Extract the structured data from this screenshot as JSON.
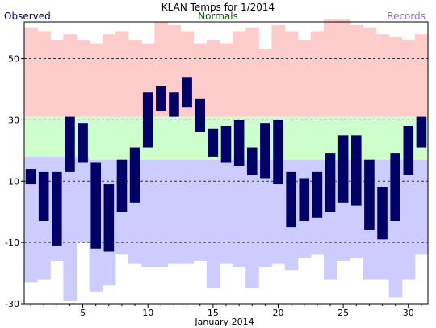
{
  "chart_data": {
    "type": "bar",
    "title": "KLAN Temps for 1/2014",
    "xlabel": "January 2014",
    "ylabel": "",
    "ylim": [
      -30,
      62
    ],
    "xlim": [
      0.5,
      31.5
    ],
    "grid": "horizontal dashed at y tick values",
    "legend": [
      {
        "name": "Observed",
        "color": "#000066",
        "placement": "top-left"
      },
      {
        "name": "Normals",
        "color": "#006600",
        "placement": "top-center"
      },
      {
        "name": "Records",
        "color": "#9966cc",
        "placement": "top-right"
      }
    ],
    "y_ticks": [
      -30,
      -10,
      10,
      30,
      50
    ],
    "x_ticks": [
      5,
      10,
      15,
      20,
      25,
      30
    ],
    "days": [
      1,
      2,
      3,
      4,
      5,
      6,
      7,
      8,
      9,
      10,
      11,
      12,
      13,
      14,
      15,
      16,
      17,
      18,
      19,
      20,
      21,
      22,
      23,
      24,
      25,
      26,
      27,
      28,
      29,
      30,
      31
    ],
    "series": [
      {
        "name": "Observed",
        "color": "#000066",
        "high": [
          14,
          13,
          13,
          31,
          29,
          16,
          9,
          17,
          21,
          39,
          41,
          39,
          44,
          37,
          27,
          28,
          30,
          21,
          29,
          30,
          13,
          11,
          13,
          19,
          25,
          25,
          17,
          8,
          19,
          28,
          31
        ],
        "low": [
          9,
          -3,
          -11,
          13,
          16,
          -12,
          -13,
          0,
          3,
          21,
          33,
          31,
          34,
          26,
          18,
          16,
          15,
          12,
          11,
          9,
          -5,
          -3,
          -2,
          0,
          3,
          2,
          -6,
          -9,
          -3,
          12,
          21
        ]
      },
      {
        "name": "Normals",
        "color": "#ccffcc",
        "high": [
          31,
          31,
          31,
          31,
          31,
          31,
          31,
          31,
          31,
          31,
          31,
          31,
          31,
          31,
          31,
          31,
          31,
          31,
          31,
          31,
          31,
          31,
          31,
          31,
          31,
          31,
          31,
          31,
          31,
          31,
          31
        ],
        "low": [
          18,
          18,
          18,
          18,
          18,
          17,
          17,
          17,
          17,
          17,
          17,
          17,
          17,
          17,
          17,
          17,
          17,
          17,
          17,
          17,
          17,
          17,
          17,
          17,
          17,
          17,
          17,
          17,
          17,
          17,
          17
        ]
      },
      {
        "name": "Records",
        "color": "#ffcccc",
        "high": [
          60,
          59,
          56,
          58,
          56,
          55,
          58,
          59,
          56,
          55,
          62,
          61,
          59,
          55,
          56,
          55,
          59,
          60,
          53,
          61,
          59,
          56,
          59,
          63,
          63,
          61,
          60,
          58,
          57,
          56,
          58
        ],
        "low": [
          -23,
          -22,
          -16,
          -29,
          -10,
          -26,
          -24,
          -14,
          -17,
          -18,
          -18,
          -17,
          -17,
          -16,
          -25,
          -17,
          -18,
          -25,
          -18,
          -17,
          -19,
          -15,
          -14,
          -22,
          -16,
          -15,
          -22,
          -22,
          -28,
          -22,
          -14
        ]
      }
    ]
  }
}
